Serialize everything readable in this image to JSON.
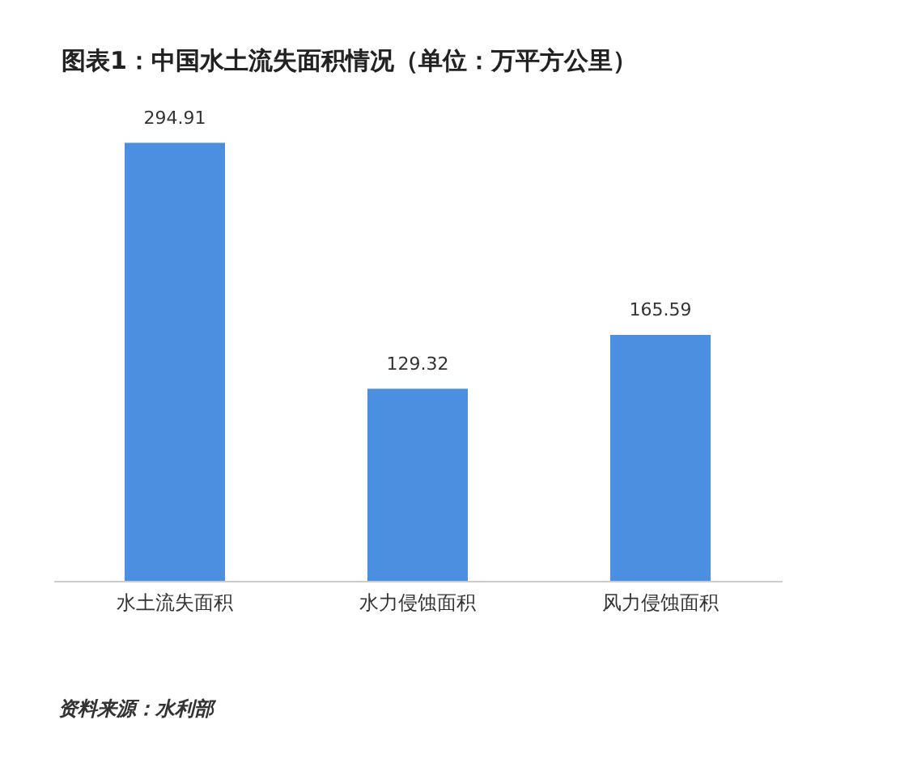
{
  "chart_data": {
    "type": "bar",
    "title": "图表1：中国水土流失面积情况（单位：万平方公里）",
    "categories": [
      "水土流失面积",
      "水力侵蚀面积",
      "风力侵蚀面积"
    ],
    "values": [
      294.91,
      129.32,
      165.59
    ],
    "color": "#4a8fe0",
    "data_labels": true,
    "annotations": [
      "资料来源：水利部"
    ]
  }
}
